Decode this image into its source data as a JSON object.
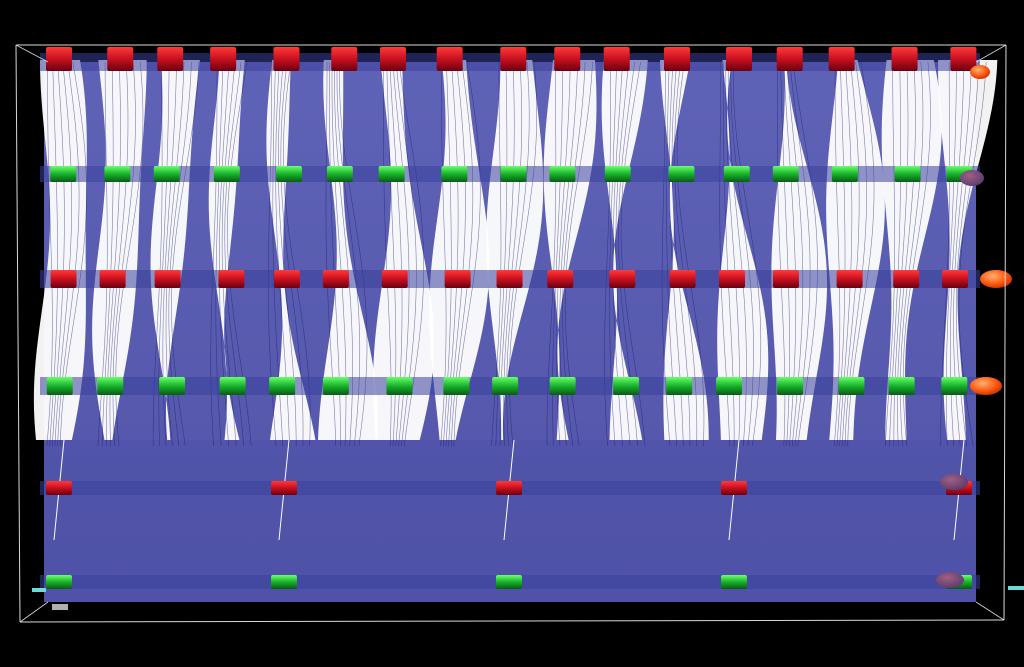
{
  "viewer": {
    "background_color": "#000000",
    "volume_color": "#5b5fb8",
    "volume_dark_color": "#3a3d96",
    "streamline_color": "#ffffff",
    "streamline_edge_color": "#1a1a6e",
    "red_band_color": "#c8101e",
    "green_band_color": "#17b22b",
    "sphere_color": "#ff6a1a",
    "frame_color": "#d8d8d8"
  },
  "scene": {
    "band_rows": [
      {
        "color": "red",
        "role": "top-row"
      },
      {
        "color": "green",
        "role": "upper-row"
      },
      {
        "color": "red",
        "role": "middle-row"
      },
      {
        "color": "green",
        "role": "lower-row"
      },
      {
        "color": "red",
        "role": "bottom-row"
      },
      {
        "color": "green",
        "role": "base-row"
      }
    ],
    "streamline_column_count": 17
  }
}
